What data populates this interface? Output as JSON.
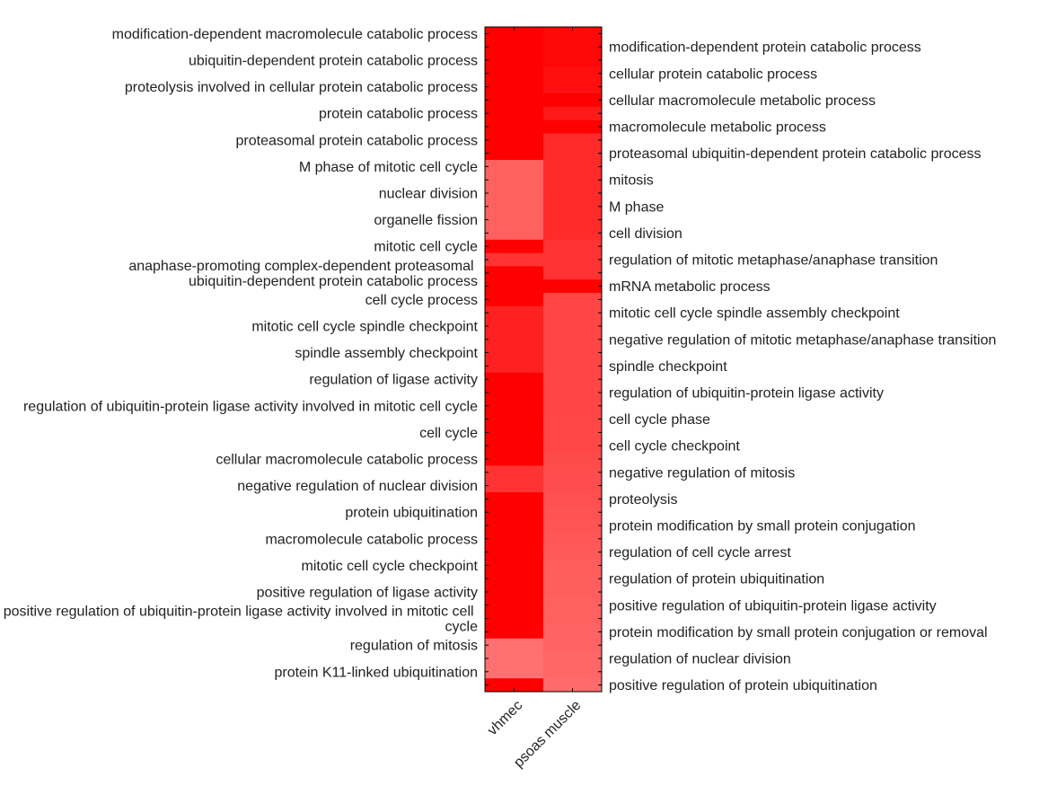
{
  "chart_data": {
    "type": "heatmap",
    "colormap": {
      "low": "#ff0000",
      "high": "#ffffff"
    },
    "value_note_scale": "fraction of fade from red toward white",
    "columns": [
      "vhmec",
      "psoas muscle"
    ],
    "rows": [
      "modification-dependent macromolecule catabolic process",
      "modification-dependent protein catabolic process",
      "ubiquitin-dependent protein catabolic process",
      "cellular protein catabolic process",
      "proteolysis involved in cellular protein catabolic process",
      "cellular macromolecule metabolic process",
      "protein catabolic process",
      "macromolecule metabolic process",
      "proteasomal protein catabolic process",
      "proteasomal ubiquitin-dependent protein catabolic process",
      "M phase of mitotic cell cycle",
      "mitosis",
      "nuclear division",
      "M phase",
      "organelle fission",
      "cell division",
      "mitotic cell cycle",
      "regulation of mitotic metaphase/anaphase transition",
      "anaphase-promoting complex-dependent proteasomal ubiquitin-dependent protein catabolic process",
      "mRNA metabolic process",
      "cell cycle process",
      "mitotic cell cycle spindle assembly checkpoint",
      "mitotic cell cycle spindle checkpoint",
      "negative regulation of mitotic metaphase/anaphase transition",
      "spindle assembly checkpoint",
      "spindle checkpoint",
      "regulation of ligase activity",
      "regulation of ubiquitin-protein ligase activity",
      "regulation of ubiquitin-protein ligase activity involved in mitotic cell cycle",
      "cell cycle phase",
      "cell cycle",
      "cell cycle checkpoint",
      "cellular macromolecule catabolic process",
      "negative regulation of mitosis",
      "negative regulation of nuclear division",
      "proteolysis",
      "protein ubiquitination",
      "protein modification by small protein conjugation",
      "macromolecule catabolic process",
      "regulation of cell cycle arrest",
      "mitotic cell cycle checkpoint",
      "regulation of protein ubiquitination",
      "positive regulation of ligase activity",
      "positive regulation of ubiquitin-protein ligase activity",
      "positive regulation of ubiquitin-protein ligase activity involved in mitotic cell cycle",
      "protein modification by small protein conjugation or removal",
      "regulation of mitosis",
      "regulation of nuclear division",
      "protein K11-linked ubiquitination",
      "positive regulation of protein ubiquitination"
    ],
    "values": [
      [
        0.0,
        0.03
      ],
      [
        0.0,
        0.03
      ],
      [
        0.0,
        0.03
      ],
      [
        0.0,
        0.06
      ],
      [
        0.0,
        0.06
      ],
      [
        0.0,
        0.0
      ],
      [
        0.0,
        0.1
      ],
      [
        0.0,
        0.0
      ],
      [
        0.0,
        0.16
      ],
      [
        0.0,
        0.16
      ],
      [
        0.38,
        0.16
      ],
      [
        0.38,
        0.16
      ],
      [
        0.38,
        0.16
      ],
      [
        0.38,
        0.17
      ],
      [
        0.38,
        0.17
      ],
      [
        0.38,
        0.17
      ],
      [
        0.0,
        0.2
      ],
      [
        0.2,
        0.2
      ],
      [
        0.0,
        0.2
      ],
      [
        0.0,
        0.0
      ],
      [
        0.0,
        0.27
      ],
      [
        0.13,
        0.27
      ],
      [
        0.13,
        0.27
      ],
      [
        0.13,
        0.27
      ],
      [
        0.13,
        0.27
      ],
      [
        0.13,
        0.27
      ],
      [
        0.0,
        0.27
      ],
      [
        0.0,
        0.27
      ],
      [
        0.0,
        0.27
      ],
      [
        0.0,
        0.28
      ],
      [
        0.0,
        0.28
      ],
      [
        0.0,
        0.28
      ],
      [
        0.0,
        0.29
      ],
      [
        0.2,
        0.3
      ],
      [
        0.2,
        0.3
      ],
      [
        0.0,
        0.31
      ],
      [
        0.0,
        0.32
      ],
      [
        0.0,
        0.33
      ],
      [
        0.0,
        0.34
      ],
      [
        0.0,
        0.35
      ],
      [
        0.0,
        0.36
      ],
      [
        0.0,
        0.37
      ],
      [
        0.0,
        0.37
      ],
      [
        0.0,
        0.38
      ],
      [
        0.0,
        0.38
      ],
      [
        0.0,
        0.39
      ],
      [
        0.44,
        0.39
      ],
      [
        0.44,
        0.4
      ],
      [
        0.44,
        0.4
      ],
      [
        0.0,
        0.42
      ]
    ],
    "grid": false,
    "legend": "none"
  }
}
